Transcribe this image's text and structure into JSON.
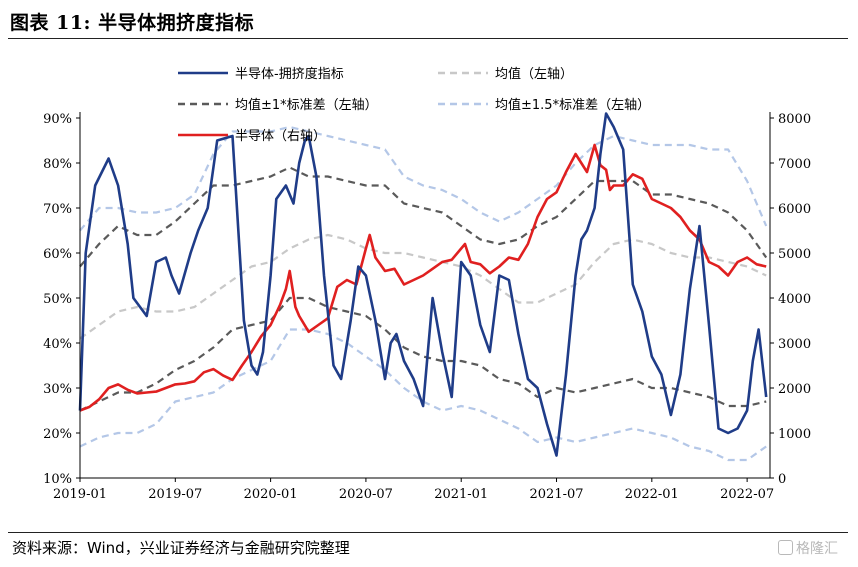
{
  "title": "图表 11:  半导体拥挤度指标",
  "source": "资料来源：Wind，兴业证券经济与金融研究院整理",
  "watermark": "格隆汇",
  "chart_data": {
    "type": "line",
    "x_ticks": [
      "2019-01",
      "2019-07",
      "2020-01",
      "2020-07",
      "2021-01",
      "2021-07",
      "2022-01",
      "2022-07"
    ],
    "y_left": {
      "ticks": [
        "10%",
        "20%",
        "30%",
        "40%",
        "50%",
        "60%",
        "70%",
        "80%",
        "90%"
      ],
      "lim": [
        10,
        90
      ]
    },
    "y_right": {
      "ticks": [
        "0",
        "1000",
        "2000",
        "3000",
        "4000",
        "5000",
        "6000",
        "7000",
        "8000"
      ],
      "lim": [
        0,
        8000
      ]
    },
    "series": [
      {
        "name": "半导体-拥挤度指标",
        "axis": "left",
        "color": "#1f3c88",
        "dash": "",
        "x": [
          2019.0,
          2019.03,
          2019.08,
          2019.15,
          2019.2,
          2019.25,
          2019.28,
          2019.35,
          2019.4,
          2019.45,
          2019.48,
          2019.52,
          2019.58,
          2019.62,
          2019.67,
          2019.72,
          2019.8,
          2019.86,
          2019.9,
          2019.93,
          2019.96,
          2020.0,
          2020.03,
          2020.08,
          2020.12,
          2020.15,
          2020.18,
          2020.2,
          2020.24,
          2020.28,
          2020.33,
          2020.37,
          2020.42,
          2020.46,
          2020.5,
          2020.55,
          2020.6,
          2020.63,
          2020.66,
          2020.7,
          2020.75,
          2020.8,
          2020.85,
          2020.9,
          2020.95,
          2021.0,
          2021.05,
          2021.1,
          2021.15,
          2021.2,
          2021.25,
          2021.3,
          2021.35,
          2021.4,
          2021.45,
          2021.5,
          2021.55,
          2021.6,
          2021.63,
          2021.66,
          2021.7,
          2021.73,
          2021.76,
          2021.8,
          2021.85,
          2021.9,
          2021.95,
          2022.0,
          2022.05,
          2022.1,
          2022.15,
          2022.2,
          2022.25,
          2022.3,
          2022.35,
          2022.4,
          2022.45,
          2022.5,
          2022.53,
          2022.56,
          2022.6
        ],
        "values": [
          25,
          60,
          75,
          81,
          75,
          62,
          50,
          46,
          58,
          59,
          55,
          51,
          60,
          65,
          70,
          85,
          86,
          45,
          35,
          33,
          38,
          55,
          72,
          75,
          71,
          80,
          85,
          86,
          77,
          55,
          35,
          32,
          45,
          57,
          55,
          45,
          32,
          40,
          42,
          36,
          32,
          26,
          50,
          38,
          28,
          58,
          55,
          44,
          38,
          55,
          54,
          42,
          32,
          30,
          22,
          15,
          33,
          55,
          63,
          65,
          70,
          82,
          91,
          88,
          83,
          53,
          47,
          37,
          33,
          24,
          33,
          52,
          66,
          44,
          21,
          20,
          21,
          25,
          36,
          43,
          28
        ]
      },
      {
        "name": "均值（左轴）",
        "axis": "left",
        "color": "#c8c8c8",
        "dash": "7,5",
        "x": [
          2019.0,
          2019.1,
          2019.2,
          2019.3,
          2019.4,
          2019.5,
          2019.6,
          2019.7,
          2019.8,
          2019.9,
          2020.0,
          2020.1,
          2020.2,
          2020.3,
          2020.4,
          2020.5,
          2020.6,
          2020.7,
          2020.8,
          2020.9,
          2021.0,
          2021.1,
          2021.2,
          2021.3,
          2021.4,
          2021.5,
          2021.6,
          2021.7,
          2021.8,
          2021.9,
          2022.0,
          2022.1,
          2022.2,
          2022.3,
          2022.4,
          2022.5,
          2022.6
        ],
        "values": [
          41,
          44,
          47,
          48,
          47,
          47,
          48,
          51,
          54,
          57,
          58,
          61,
          63,
          64,
          63,
          61,
          60,
          60,
          59,
          58,
          57,
          55,
          52,
          49,
          49,
          51,
          53,
          58,
          62,
          63,
          62,
          60,
          59,
          59,
          58,
          57,
          55
        ]
      },
      {
        "name": "均值±1*标准差（左轴）",
        "axis": "left",
        "color": "#5a5a5a",
        "dash": "7,5",
        "upper_x": [
          2019.0,
          2019.1,
          2019.2,
          2019.3,
          2019.4,
          2019.5,
          2019.6,
          2019.7,
          2019.8,
          2019.9,
          2020.0,
          2020.1,
          2020.2,
          2020.3,
          2020.4,
          2020.5,
          2020.6,
          2020.7,
          2020.8,
          2020.9,
          2021.0,
          2021.1,
          2021.2,
          2021.3,
          2021.4,
          2021.5,
          2021.6,
          2021.7,
          2021.8,
          2021.9,
          2022.0,
          2022.1,
          2022.2,
          2022.3,
          2022.4,
          2022.5,
          2022.6
        ],
        "upper": [
          57,
          62,
          66,
          64,
          64,
          67,
          71,
          75,
          75,
          76,
          77,
          79,
          77,
          77,
          76,
          75,
          75,
          71,
          70,
          69,
          66,
          63,
          62,
          63,
          66,
          68,
          72,
          76,
          76,
          76,
          73,
          73,
          72,
          71,
          69,
          65,
          59
        ],
        "lower_x": [
          2019.0,
          2019.1,
          2019.2,
          2019.3,
          2019.4,
          2019.5,
          2019.6,
          2019.7,
          2019.8,
          2019.9,
          2020.0,
          2020.1,
          2020.2,
          2020.3,
          2020.4,
          2020.5,
          2020.6,
          2020.7,
          2020.8,
          2020.9,
          2021.0,
          2021.1,
          2021.2,
          2021.3,
          2021.4,
          2021.5,
          2021.6,
          2021.7,
          2021.8,
          2021.9,
          2022.0,
          2022.1,
          2022.2,
          2022.3,
          2022.4,
          2022.5,
          2022.6
        ],
        "lower": [
          25,
          27,
          29,
          29,
          31,
          34,
          36,
          39,
          43,
          44,
          45,
          50,
          50,
          48,
          47,
          46,
          43,
          39,
          37,
          36,
          36,
          35,
          32,
          31,
          28,
          30,
          29,
          30,
          31,
          32,
          30,
          30,
          29,
          28,
          26,
          26,
          27
        ]
      },
      {
        "name": "均值±1.5*标准差（左轴）",
        "axis": "left",
        "color": "#b4c7e7",
        "dash": "7,5",
        "upper_x": [
          2019.0,
          2019.1,
          2019.2,
          2019.3,
          2019.4,
          2019.5,
          2019.6,
          2019.7,
          2019.8,
          2019.9,
          2020.0,
          2020.1,
          2020.2,
          2020.3,
          2020.4,
          2020.5,
          2020.6,
          2020.7,
          2020.8,
          2020.9,
          2021.0,
          2021.1,
          2021.2,
          2021.3,
          2021.4,
          2021.5,
          2021.6,
          2021.7,
          2021.8,
          2021.9,
          2022.0,
          2022.1,
          2022.2,
          2022.3,
          2022.4,
          2022.5,
          2022.6
        ],
        "upper": [
          65,
          70,
          70,
          69,
          69,
          70,
          73,
          82,
          87,
          87,
          87,
          88,
          87,
          86,
          85,
          84,
          83,
          77,
          75,
          74,
          72,
          69,
          67,
          69,
          72,
          75,
          80,
          84,
          86,
          85,
          84,
          84,
          84,
          83,
          83,
          76,
          66
        ],
        "lower_x": [
          2019.0,
          2019.1,
          2019.2,
          2019.3,
          2019.4,
          2019.5,
          2019.6,
          2019.7,
          2019.8,
          2019.9,
          2020.0,
          2020.1,
          2020.2,
          2020.3,
          2020.4,
          2020.5,
          2020.6,
          2020.7,
          2020.8,
          2020.9,
          2021.0,
          2021.1,
          2021.2,
          2021.3,
          2021.4,
          2021.5,
          2021.6,
          2021.7,
          2021.8,
          2021.9,
          2022.0,
          2022.1,
          2022.2,
          2022.3,
          2022.4,
          2022.5,
          2022.6
        ],
        "lower": [
          17,
          19,
          20,
          20,
          22,
          27,
          28,
          29,
          32,
          34,
          36,
          43,
          43,
          42,
          40,
          37,
          34,
          30,
          27,
          25,
          26,
          25,
          23,
          21,
          18,
          19,
          18,
          19,
          20,
          21,
          20,
          19,
          17,
          16,
          14,
          14,
          17
        ]
      },
      {
        "name": "半导体（右轴）",
        "axis": "right",
        "color": "#e02020",
        "dash": "",
        "x": [
          2019.0,
          2019.05,
          2019.1,
          2019.15,
          2019.2,
          2019.25,
          2019.3,
          2019.35,
          2019.4,
          2019.45,
          2019.5,
          2019.55,
          2019.6,
          2019.65,
          2019.7,
          2019.75,
          2019.8,
          2019.85,
          2019.9,
          2019.95,
          2020.0,
          2020.05,
          2020.08,
          2020.1,
          2020.13,
          2020.15,
          2020.2,
          2020.25,
          2020.3,
          2020.35,
          2020.4,
          2020.45,
          2020.5,
          2020.52,
          2020.55,
          2020.6,
          2020.65,
          2020.7,
          2020.75,
          2020.8,
          2020.85,
          2020.9,
          2020.95,
          2021.0,
          2021.02,
          2021.05,
          2021.1,
          2021.15,
          2021.2,
          2021.25,
          2021.3,
          2021.35,
          2021.4,
          2021.45,
          2021.5,
          2021.55,
          2021.6,
          2021.63,
          2021.66,
          2021.7,
          2021.73,
          2021.76,
          2021.78,
          2021.8,
          2021.85,
          2021.9,
          2021.95,
          2022.0,
          2022.05,
          2022.1,
          2022.15,
          2022.2,
          2022.25,
          2022.3,
          2022.35,
          2022.4,
          2022.45,
          2022.5,
          2022.55,
          2022.6
        ],
        "values": [
          1500,
          1580,
          1750,
          2000,
          2080,
          1960,
          1880,
          1900,
          1920,
          2000,
          2080,
          2100,
          2150,
          2350,
          2420,
          2280,
          2180,
          2500,
          2800,
          3150,
          3400,
          3850,
          4200,
          4600,
          3800,
          3600,
          3250,
          3400,
          3550,
          4250,
          4400,
          4300,
          5100,
          5400,
          4900,
          4600,
          4650,
          4300,
          4400,
          4500,
          4650,
          4800,
          4850,
          5100,
          5200,
          4800,
          4750,
          4550,
          4700,
          4900,
          4850,
          5200,
          5800,
          6200,
          6350,
          6800,
          7200,
          7000,
          6800,
          7400,
          6950,
          6850,
          6400,
          6500,
          6500,
          6750,
          6650,
          6200,
          6100,
          6000,
          5800,
          5500,
          5300,
          4800,
          4700,
          4500,
          4800,
          4900,
          4750,
          4700
        ]
      }
    ]
  }
}
